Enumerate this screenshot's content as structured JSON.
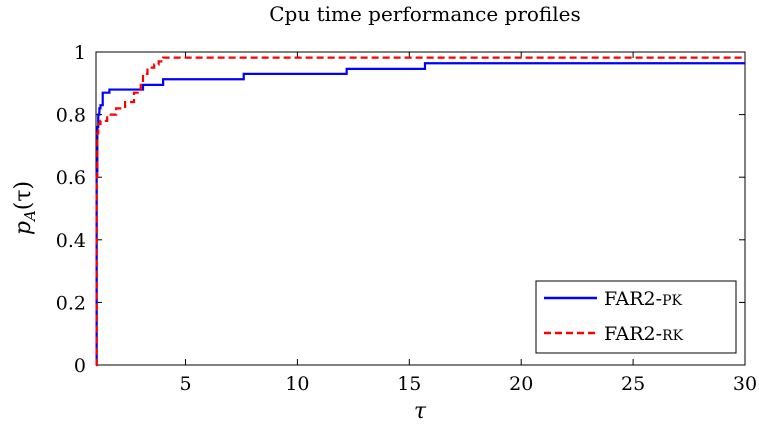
{
  "chart_data": {
    "type": "line",
    "title": "Cpu time performance profiles",
    "xlabel": "τ",
    "ylabel_main": "p",
    "ylabel_sub": "A",
    "ylabel_tail": "(τ)",
    "xlim": [
      1,
      30
    ],
    "ylim": [
      0,
      1
    ],
    "x_ticks": [
      5,
      10,
      15,
      20,
      25,
      30
    ],
    "y_ticks": [
      0,
      0.2,
      0.4,
      0.6,
      0.8,
      1
    ],
    "y_tick_labels": [
      "0",
      "0.2",
      "0.4",
      "0.6",
      "0.8",
      "1"
    ],
    "grid": false,
    "legend_position": "bottom-right",
    "series": [
      {
        "name_main": "FAR2-",
        "name_tail": "PK",
        "color": "#0000ff",
        "dash": "solid",
        "x": [
          1,
          1.03,
          1.06,
          1.1,
          1.15,
          1.2,
          1.3,
          1.6,
          2.9,
          3.1,
          3.9,
          4.0,
          7.5,
          7.6,
          12.1,
          12.2,
          15.6,
          15.7,
          30
        ],
        "y": [
          0,
          0.62,
          0.76,
          0.8,
          0.82,
          0.83,
          0.87,
          0.88,
          0.88,
          0.895,
          0.895,
          0.913,
          0.913,
          0.93,
          0.93,
          0.946,
          0.946,
          0.964,
          0.964
        ]
      },
      {
        "name_main": "FAR2-",
        "name_tail": "RK",
        "color": "#ff0000",
        "dash": "dashed",
        "x": [
          1,
          1.03,
          1.06,
          1.1,
          1.2,
          1.5,
          1.9,
          2.3,
          2.7,
          3.0,
          3.1,
          3.3,
          3.6,
          3.8,
          4.0,
          30
        ],
        "y": [
          0,
          0.6,
          0.74,
          0.77,
          0.78,
          0.8,
          0.82,
          0.84,
          0.87,
          0.9,
          0.93,
          0.95,
          0.96,
          0.97,
          0.982,
          0.982
        ]
      }
    ]
  }
}
